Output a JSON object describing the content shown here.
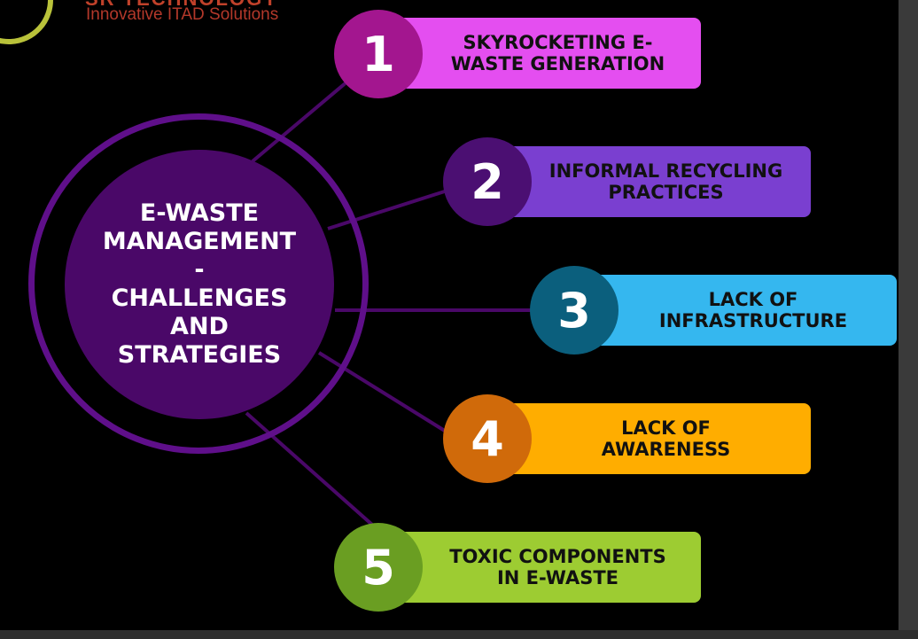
{
  "logo": {
    "name": "SR TECHNOLOGY",
    "tagline": "Innovative ITAD Solutions"
  },
  "hub": {
    "title": "E-WASTE\nMANAGEMENT\n-\nCHALLENGES\nAND\nSTRATEGIES",
    "color": "#4a0868",
    "ring_color": "#5f0f8a"
  },
  "items": [
    {
      "number": "1",
      "label": "SKYROCKETING E-\nWASTE GENERATION",
      "badge_color": "#a3168f",
      "bar_color": "#e44ef0"
    },
    {
      "number": "2",
      "label": "INFORMAL RECYCLING\nPRACTICES",
      "badge_color": "#4b0f72",
      "bar_color": "#7a3fd0"
    },
    {
      "number": "3",
      "label": "LACK OF\nINFRASTRUCTURE",
      "badge_color": "#0b5f7d",
      "bar_color": "#35b7ef"
    },
    {
      "number": "4",
      "label": "LACK OF\nAWARENESS",
      "badge_color": "#d06a0a",
      "bar_color": "#ffad00"
    },
    {
      "number": "5",
      "label": "TOXIC COMPONENTS\nIN E-WASTE",
      "badge_color": "#6a9e22",
      "bar_color": "#9dcc32"
    }
  ]
}
